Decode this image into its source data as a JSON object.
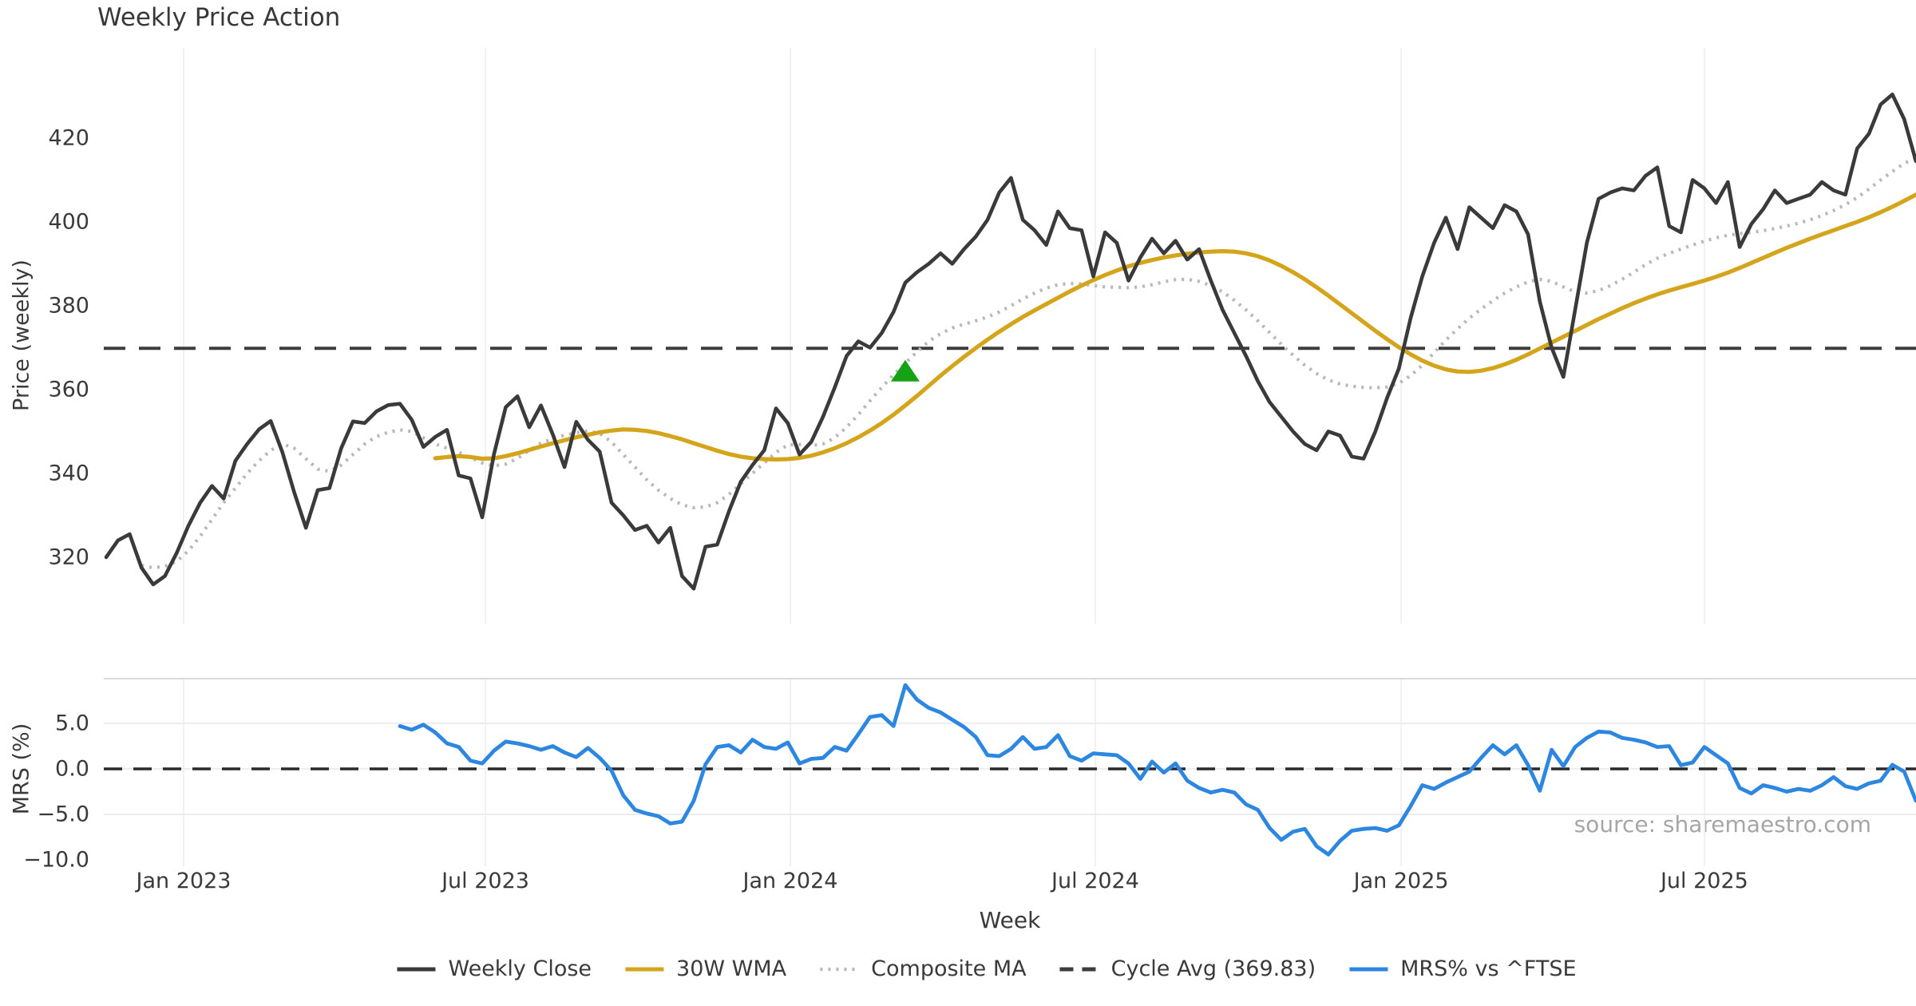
{
  "page": {
    "title": "Weekly Price Action",
    "source_note": "source: sharemaestro.com"
  },
  "colors": {
    "weekly_close": "#3a3a3a",
    "wma_30w": "#d4a41b",
    "composite_ma": "#b8b8b8",
    "cycle_avg": "#3d3d3d",
    "mrs_line": "#2d87e0",
    "signal_marker": "#15a315",
    "gridline": "#f1f1f5",
    "panel_gridline": "#ececf1",
    "panel_border": "#d8d8dd",
    "text": "#3a3a3a",
    "source_text": "#a6a6a6"
  },
  "x_axis": {
    "label": "Week",
    "ticks": [
      {
        "week": 6.59,
        "label": "Jan 2023"
      },
      {
        "week": 32.27,
        "label": "Jul 2023"
      },
      {
        "week": 58.22,
        "label": "Jan 2024"
      },
      {
        "week": 84.17,
        "label": "Jul 2024"
      },
      {
        "week": 110.2,
        "label": "Jan 2025"
      },
      {
        "week": 136.0,
        "label": "Jul 2025"
      }
    ]
  },
  "chart_data": [
    {
      "type": "line",
      "panel": "price",
      "title": "Weekly Price Action",
      "ylabel": "Price (weekly)",
      "xlabel": "Week",
      "ylim": [
        304,
        441.5
      ],
      "yticks": [
        {
          "v": 320,
          "label": "320"
        },
        {
          "v": 340,
          "label": "340"
        },
        {
          "v": 360,
          "label": "360"
        },
        {
          "v": 380,
          "label": "380"
        },
        {
          "v": 400,
          "label": "400"
        },
        {
          "v": 420,
          "label": "420"
        }
      ],
      "grid": "vertical-only",
      "cycle_avg": 369.83,
      "signal_marker": {
        "type": "buy-signal",
        "symbol": "triangle-up",
        "week": 68,
        "value": 364.4,
        "color": "#15a315"
      },
      "series": [
        {
          "name": "Weekly Close",
          "color": "#3a3a3a",
          "style": "solid",
          "width": 4.6,
          "start_week": 0,
          "values": [
            320,
            324,
            325.5,
            317.5,
            313.5,
            315.5,
            321,
            327.5,
            333,
            337,
            334,
            343,
            347,
            350.5,
            352.5,
            345,
            335.5,
            327,
            336,
            336.5,
            346,
            352.4,
            352,
            354.8,
            356.3,
            356.6,
            352.8,
            346.3,
            348.7,
            350.4,
            339.5,
            338.8,
            329.5,
            344.6,
            355.8,
            358.4,
            351,
            356.2,
            349.3,
            341.5,
            352.3,
            348,
            345.2,
            333,
            330,
            326.5,
            327.5,
            323.5,
            327,
            315.5,
            312.5,
            322.5,
            323,
            331,
            338,
            342,
            345.5,
            355.5,
            352,
            344.5,
            347.5,
            353.5,
            360.5,
            368,
            371.5,
            370,
            373.5,
            378.5,
            385.5,
            388,
            390,
            392.5,
            390,
            393.5,
            396.5,
            400.5,
            407,
            410.5,
            400.5,
            398,
            394.5,
            402.5,
            398.5,
            398,
            387,
            397.5,
            395,
            386,
            391.5,
            396,
            392.5,
            395.5,
            391,
            393.5,
            386,
            379,
            373.5,
            368,
            362,
            357,
            353.5,
            350,
            347,
            345.5,
            350,
            349,
            344,
            343.5,
            350,
            358,
            365,
            377,
            387,
            395,
            401,
            393.5,
            403.5,
            401,
            398.5,
            404,
            402.5,
            397,
            381,
            370,
            363,
            379,
            395,
            405.5,
            407,
            408,
            407.5,
            411,
            413,
            399,
            397.5,
            410,
            408,
            404.5,
            409.5,
            394,
            399.5,
            403,
            407.5,
            404.5,
            405.5,
            406.5,
            409.5,
            407.5,
            406.5,
            417.5,
            421,
            428,
            430.4,
            424.5,
            414.5
          ]
        },
        {
          "name": "30W WMA",
          "color": "#d4a41b",
          "style": "solid",
          "width": 5.2,
          "start_week": 28,
          "values": [
            343.6,
            343.9,
            344.1,
            343.9,
            343.5,
            343.6,
            344.1,
            344.8,
            345.6,
            346.4,
            347.2,
            347.9,
            348.6,
            349.2,
            349.8,
            350.2,
            350.5,
            350.4,
            350.1,
            349.6,
            348.9,
            348.1,
            347.2,
            346.3,
            345.4,
            344.6,
            344.0,
            343.6,
            343.4,
            343.3,
            343.4,
            343.7,
            344.2,
            345.0,
            346.0,
            347.2,
            348.6,
            350.2,
            352.0,
            354.0,
            356.2,
            358.5,
            360.9,
            363.3,
            365.6,
            367.8,
            369.9,
            371.9,
            373.8,
            375.6,
            377.3,
            378.9,
            380.4,
            381.9,
            383.4,
            384.8,
            386.1,
            387.3,
            388.4,
            389.4,
            390.2,
            390.9,
            391.5,
            392.0,
            392.4,
            392.7,
            392.9,
            393.0,
            392.9,
            392.5,
            391.8,
            390.8,
            389.5,
            388.0,
            386.3,
            384.4,
            382.4,
            380.3,
            378.2,
            376.1,
            374.0,
            372.0,
            370.1,
            368.4,
            366.9,
            365.7,
            364.8,
            364.3,
            364.2,
            364.5,
            365.1,
            366.0,
            367.1,
            368.4,
            369.8,
            371.2,
            372.6,
            374.0,
            375.4,
            376.8,
            378.1,
            379.4,
            380.6,
            381.7,
            382.7,
            383.6,
            384.4,
            385.2,
            386.0,
            386.9,
            387.9,
            389.0,
            390.2,
            391.4,
            392.6,
            393.8,
            394.9,
            396.0,
            397.0,
            398.0,
            399.0,
            400.0,
            401.1,
            402.3,
            403.6,
            405.0,
            406.5
          ]
        },
        {
          "name": "Composite MA",
          "color": "#b8b8b8",
          "style": "dotted",
          "width": 4.2,
          "start_week": 3,
          "values": [
            318,
            317.5,
            317.8,
            319,
            321.5,
            325,
            329,
            333,
            336.5,
            340,
            343,
            345.5,
            347,
            346,
            343.5,
            341,
            340.5,
            342,
            344.5,
            347,
            348.8,
            349.8,
            350.4,
            350,
            348.5,
            347,
            346,
            345,
            343.8,
            342.5,
            341.8,
            342.2,
            343.6,
            345.5,
            347.2,
            348.3,
            349.1,
            349.7,
            350.1,
            349.5,
            347.5,
            344.5,
            341.5,
            338.5,
            336,
            334,
            332.5,
            331.8,
            332,
            333,
            335,
            337.5,
            340,
            342.5,
            345,
            346.8,
            346.9,
            346.6,
            347,
            348.5,
            351,
            354,
            357.3,
            360.5,
            363.5,
            366.3,
            369,
            371.5,
            373.3,
            374.7,
            375.6,
            376.4,
            377.3,
            378.5,
            380,
            381.6,
            383,
            384.2,
            385,
            385.3,
            385.2,
            384.8,
            384.5,
            384.4,
            384.3,
            384.5,
            385,
            385.7,
            386.2,
            386.3,
            385.8,
            384.8,
            383.3,
            381.3,
            379,
            376.4,
            373.6,
            370.8,
            368.2,
            365.8,
            363.8,
            362.3,
            361.3,
            360.8,
            360.5,
            360.4,
            360.6,
            361.5,
            363.3,
            365.8,
            368.8,
            371.8,
            374.5,
            377,
            379.2,
            381.2,
            383,
            384.5,
            385.7,
            386.3,
            385.8,
            384.5,
            383.3,
            383,
            383.6,
            384.8,
            386.3,
            388,
            389.8,
            391.3,
            392.5,
            393.5,
            394.5,
            395.4,
            396.2,
            396.8,
            397.2,
            397.5,
            397.9,
            398.4,
            399,
            399.7,
            400.5,
            401.5,
            402.7,
            404.1,
            405.8,
            407.8,
            410,
            412,
            414,
            415.2
          ]
        }
      ]
    },
    {
      "type": "line",
      "panel": "mrs",
      "ylabel": "MRS (%)",
      "ylim": [
        -10.75,
        9.95
      ],
      "yticks": [
        {
          "v": 5,
          "label": "5.0"
        },
        {
          "v": 0,
          "label": "0.0"
        },
        {
          "v": -5,
          "label": "−5.0"
        },
        {
          "v": -10,
          "label": "−10.0"
        }
      ],
      "zero_line": 0.0,
      "series": [
        {
          "name": "MRS% vs ^FTSE",
          "color": "#2d87e0",
          "style": "solid",
          "width": 4.8,
          "start_week": 25,
          "values": [
            4.7,
            4.3,
            4.85,
            4.0,
            2.8,
            2.4,
            0.9,
            0.6,
            2.0,
            3.0,
            2.8,
            2.5,
            2.1,
            2.5,
            1.8,
            1.3,
            2.3,
            1.2,
            -0.2,
            -2.9,
            -4.5,
            -4.9,
            -5.2,
            -6.0,
            -5.8,
            -3.5,
            0.5,
            2.4,
            2.6,
            1.8,
            3.2,
            2.4,
            2.2,
            2.9,
            0.6,
            1.1,
            1.2,
            2.4,
            2.0,
            3.8,
            5.7,
            5.9,
            4.7,
            9.2,
            7.6,
            6.7,
            6.2,
            5.4,
            4.6,
            3.5,
            1.5,
            1.4,
            2.2,
            3.5,
            2.2,
            2.4,
            3.7,
            1.4,
            0.9,
            1.7,
            1.6,
            1.5,
            0.6,
            -1.1,
            0.8,
            -0.4,
            0.6,
            -1.3,
            -2.1,
            -2.6,
            -2.3,
            -2.6,
            -3.9,
            -4.5,
            -6.5,
            -7.8,
            -6.9,
            -6.6,
            -8.5,
            -9.4,
            -7.9,
            -6.8,
            -6.6,
            -6.5,
            -6.8,
            -6.2,
            -4.1,
            -1.8,
            -2.2,
            -1.5,
            -0.9,
            -0.3,
            1.2,
            2.6,
            1.6,
            2.6,
            0.4,
            -2.4,
            2.1,
            0.3,
            2.4,
            3.4,
            4.1,
            4.0,
            3.4,
            3.2,
            2.9,
            2.4,
            2.5,
            0.4,
            0.7,
            2.4,
            1.5,
            0.6,
            -2.1,
            -2.7,
            -1.8,
            -2.1,
            -2.5,
            -2.2,
            -2.4,
            -1.8,
            -0.9,
            -1.9,
            -2.2,
            -1.6,
            -1.3,
            0.45,
            -0.3,
            -3.5
          ]
        }
      ]
    }
  ],
  "legend": {
    "items": [
      {
        "label": "Weekly Close",
        "style": "solid",
        "color": "#3a3a3a"
      },
      {
        "label": "30W WMA",
        "style": "solid",
        "color": "#d4a41b"
      },
      {
        "label": "Composite MA",
        "style": "dotted",
        "color": "#b8b8b8"
      },
      {
        "label": "Cycle Avg (369.83)",
        "style": "dashed",
        "color": "#3d3d3d"
      },
      {
        "label": "MRS% vs ^FTSE",
        "style": "solid",
        "color": "#2d87e0"
      }
    ]
  }
}
